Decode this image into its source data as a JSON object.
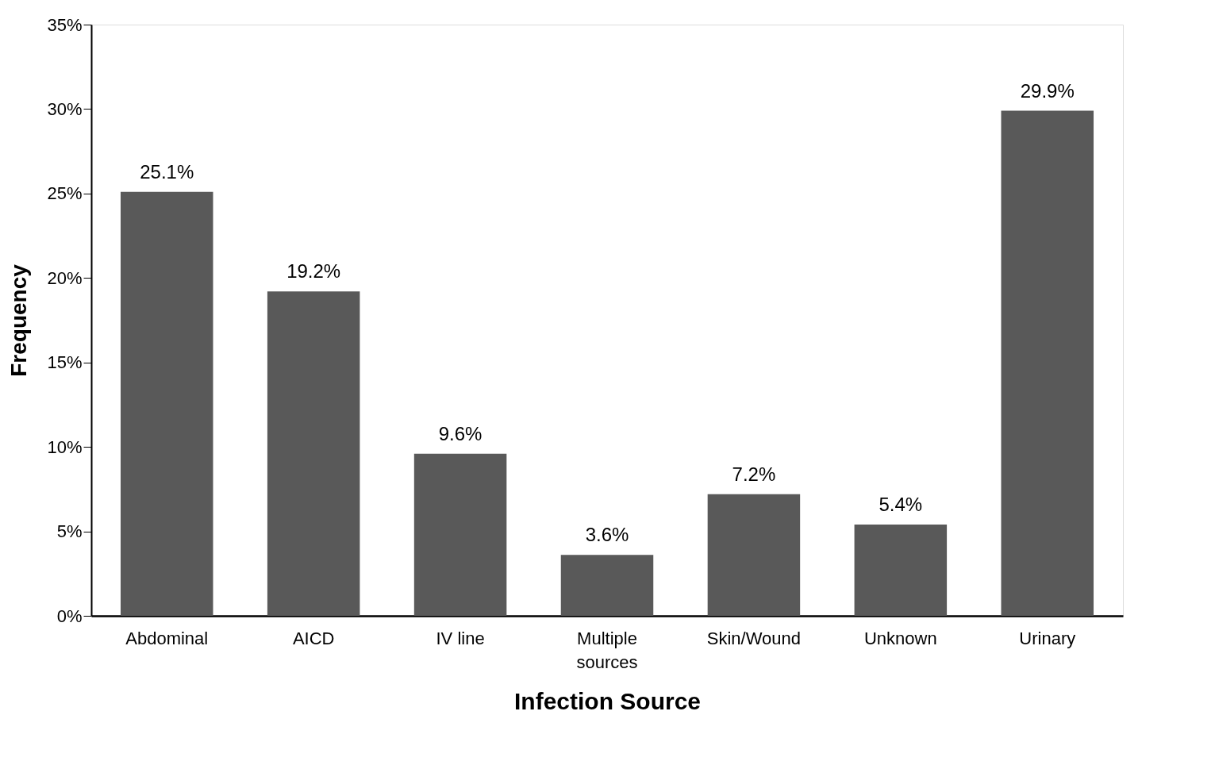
{
  "chart_data": {
    "type": "bar",
    "xlabel": "Infection Source",
    "ylabel": "Frequency",
    "categories": [
      "Abdominal",
      "AICD",
      "IV line",
      "Multiple sources",
      "Skin/Wound",
      "Unknown",
      "Urinary"
    ],
    "values": [
      25.1,
      19.2,
      9.6,
      3.6,
      7.2,
      5.4,
      29.9
    ],
    "value_labels": [
      "25.1%",
      "19.2%",
      "9.6%",
      "3.6%",
      "7.2%",
      "5.4%",
      "29.9%"
    ],
    "color": "#595959",
    "ylim": [
      0,
      35
    ],
    "yticks": [
      {
        "value": 0,
        "label": "0%"
      },
      {
        "value": 5,
        "label": "5%"
      },
      {
        "value": 10,
        "label": "10%"
      },
      {
        "value": 15,
        "label": "15%"
      },
      {
        "value": 20,
        "label": "20%"
      },
      {
        "value": 25,
        "label": "25%"
      },
      {
        "value": 30,
        "label": "30%"
      },
      {
        "value": 35,
        "label": "35%"
      }
    ],
    "grid": false
  }
}
